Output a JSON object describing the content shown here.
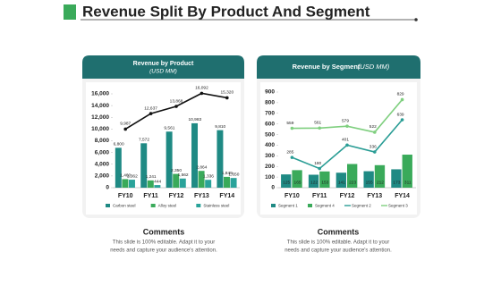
{
  "title": "Revenue Split By Product And Segment",
  "chart_data": [
    {
      "type": "bar",
      "title": "Revenue by Product",
      "subtitle": "(USD MM)",
      "categories": [
        "FY10",
        "FY11",
        "FY12",
        "FY13",
        "FY14"
      ],
      "ylim": [
        0,
        16000
      ],
      "yticks": [
        0,
        {
          "value": 2000,
          "label": "2,000"
        },
        {
          "value": 4000,
          "label": "4,000"
        },
        {
          "value": 6000,
          "label": "6,000"
        },
        {
          "value": 8000,
          "label": "8,000"
        },
        {
          "value": 10000,
          "label": "10,000"
        },
        {
          "value": 12000,
          "label": "12,000"
        },
        {
          "value": 14000,
          "label": "14,000"
        },
        {
          "value": 16000,
          "label": "16,000"
        }
      ],
      "series": [
        {
          "name": "Carbon steel",
          "kind": "bar",
          "color": "#1f8a84",
          "values": [
            6800,
            7572,
            9561,
            10983,
            9810
          ],
          "value_labels": [
            "6,800",
            "7,572",
            "9,561",
            "10,983",
            "9,810"
          ]
        },
        {
          "name": "Alloy steel",
          "kind": "bar",
          "color": "#3aaa5a",
          "values": [
            1460,
            1241,
            2350,
            2864,
            1849
          ],
          "value_labels": [
            "1,460",
            "1,241",
            "2,350",
            "2,864",
            "1,849"
          ]
        },
        {
          "name": "Stainless steel",
          "kind": "bar",
          "color": "#2aa39a",
          "values": [
            1362,
            444,
            1562,
            1336,
            1650
          ],
          "value_labels": [
            "1,362",
            "444",
            "1,562",
            "1,336",
            "1,650"
          ]
        },
        {
          "kind": "line",
          "color": "#111111",
          "values": [
            9987,
            12637,
            13868,
            16092,
            15320
          ],
          "value_labels": [
            "9,987",
            "12,637",
            "13,868",
            "16,092",
            "15,320"
          ]
        }
      ]
    },
    {
      "type": "bar",
      "title": "Revenue by Segment",
      "subtitle": "(USD MM)",
      "categories": [
        "FY10",
        "FY11",
        "FY12",
        "FY13",
        "FY14"
      ],
      "ylim": [
        0,
        900
      ],
      "yticks": [
        0,
        100,
        200,
        300,
        400,
        500,
        600,
        700,
        800,
        900
      ],
      "series": [
        {
          "name": "Segment 1",
          "kind": "bar",
          "color": "#1f8a84",
          "values": [
            125,
            122,
            141,
            155,
            173
          ]
        },
        {
          "name": "Segment 4",
          "kind": "bar",
          "color": "#3aaa5a",
          "values": [
            165,
            153,
            223,
            212,
            311
          ]
        },
        {
          "name": "Segment 2",
          "kind": "line",
          "color": "#2a9d95",
          "values": [
            285,
            180,
            401,
            336,
            639
          ]
        },
        {
          "name": "Segment 3",
          "kind": "line",
          "color": "#7fcf7f",
          "values": [
            559,
            561,
            579,
            522,
            829
          ]
        }
      ]
    }
  ],
  "comments": [
    {
      "heading": "Comments",
      "lines": [
        "This slide is 100% editable. Adapt it to your",
        "needs and capture your audience's attention."
      ]
    },
    {
      "heading": "Comments",
      "lines": [
        "This slide is 100% editable. Adapt it to your",
        "needs and capture your audience's attention."
      ]
    }
  ]
}
